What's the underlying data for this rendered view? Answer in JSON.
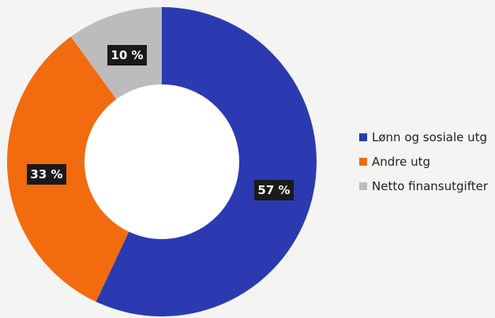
{
  "chart_data": {
    "type": "pie",
    "variant": "donut",
    "slices": [
      {
        "name": "Lønn og sosiale utg",
        "value": 57,
        "label": "57 %",
        "color": "#2b3ab0"
      },
      {
        "name": "Andre utg",
        "value": 33,
        "label": "33 %",
        "color": "#f26b0f"
      },
      {
        "name": "Netto finansutgifter",
        "value": 10,
        "label": "10 %",
        "color": "#bcbcbc"
      }
    ],
    "start_angle": "12 o'clock",
    "direction": "clockwise",
    "legend_position": "right"
  }
}
